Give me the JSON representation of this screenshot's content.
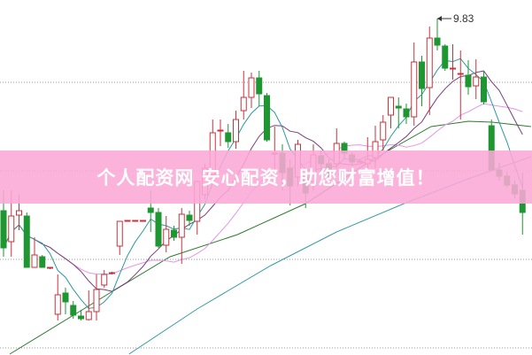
{
  "chart_data": {
    "type": "candlestick",
    "title": "",
    "xlabel": "",
    "ylabel": "",
    "ylim": [
      6.03,
      10.04
    ],
    "grid": "horizontal dotted",
    "grid_levels": [
      9.11,
      8.11,
      7.11,
      6.11
    ],
    "max_annotation": {
      "label": "9.83",
      "value": 9.83,
      "index": 56
    },
    "colors": {
      "up": "#c8323c",
      "down": "#1e9632",
      "ma5": "#2a9a9a",
      "ma10": "#7a3c7a",
      "ma20": "#e596e5",
      "ma60": "#2f7a2f",
      "ma120": "#3a9aa8",
      "grid": "#999999"
    },
    "candles_ohlc": [
      [
        7.66,
        7.89,
        7.14,
        7.24
      ],
      [
        7.31,
        7.89,
        7.14,
        7.6
      ],
      [
        7.61,
        7.84,
        7.44,
        7.66
      ],
      [
        7.6,
        7.64,
        7.02,
        7.02
      ],
      [
        7.02,
        7.36,
        7.02,
        7.16
      ],
      [
        7.14,
        7.16,
        7.02,
        7.02
      ],
      [
        7.01,
        7.02,
        7.0,
        7.02
      ],
      [
        6.49,
        6.94,
        6.42,
        6.71
      ],
      [
        6.73,
        6.79,
        6.49,
        6.63
      ],
      [
        6.59,
        6.64,
        6.44,
        6.48
      ],
      [
        6.47,
        6.54,
        6.42,
        6.44
      ],
      [
        6.43,
        6.76,
        6.42,
        6.52
      ],
      [
        6.52,
        6.94,
        6.42,
        6.77
      ],
      [
        6.82,
        6.99,
        6.79,
        6.94
      ],
      [
        6.95,
        6.97,
        6.94,
        6.96
      ],
      [
        7.26,
        7.54,
        7.16,
        7.54
      ],
      [
        7.55,
        7.55,
        7.54,
        7.55
      ],
      [
        7.55,
        7.55,
        7.54,
        7.55
      ],
      [
        7.55,
        7.55,
        7.54,
        7.55
      ],
      [
        7.69,
        7.89,
        7.42,
        7.64
      ],
      [
        7.64,
        7.69,
        7.24,
        7.26
      ],
      [
        7.27,
        7.6,
        7.19,
        7.45
      ],
      [
        7.44,
        7.49,
        7.32,
        7.36
      ],
      [
        7.36,
        7.69,
        7.06,
        7.62
      ],
      [
        7.61,
        7.66,
        7.49,
        7.55
      ],
      [
        7.54,
        8.0,
        7.39,
        7.99
      ],
      [
        7.84,
        8.19,
        7.79,
        8.14
      ],
      [
        8.07,
        8.69,
        8.04,
        8.54
      ],
      [
        8.56,
        8.69,
        8.39,
        8.57
      ],
      [
        8.54,
        8.64,
        8.37,
        8.44
      ],
      [
        8.44,
        8.79,
        8.36,
        8.69
      ],
      [
        8.79,
        9.24,
        8.69,
        8.94
      ],
      [
        8.94,
        9.22,
        8.82,
        9.16
      ],
      [
        9.16,
        9.24,
        8.84,
        8.98
      ],
      [
        8.96,
        8.99,
        8.44,
        8.46
      ],
      [
        8.3,
        8.61,
        8.04,
        8.31
      ],
      [
        8.31,
        8.41,
        7.89,
        8.09
      ],
      [
        8.14,
        8.24,
        7.72,
        7.94
      ],
      [
        8.04,
        8.46,
        7.94,
        8.41
      ],
      [
        8.04,
        8.09,
        7.69,
        7.86
      ],
      [
        7.99,
        8.41,
        7.89,
        8.29
      ],
      [
        8.28,
        8.34,
        8.09,
        8.19
      ],
      [
        8.19,
        8.24,
        7.94,
        8.04
      ],
      [
        8.19,
        8.59,
        8.14,
        8.42
      ],
      [
        8.42,
        8.44,
        8.24,
        8.31
      ],
      [
        8.29,
        8.32,
        8.18,
        8.21
      ],
      [
        8.21,
        8.24,
        8.2,
        8.22
      ],
      [
        8.19,
        8.49,
        8.14,
        8.24
      ],
      [
        8.26,
        8.62,
        8.14,
        8.44
      ],
      [
        8.46,
        8.74,
        8.34,
        8.66
      ],
      [
        8.74,
        8.94,
        8.59,
        8.94
      ],
      [
        8.84,
        8.94,
        8.59,
        8.82
      ],
      [
        8.81,
        8.87,
        8.64,
        8.72
      ],
      [
        8.72,
        9.56,
        8.62,
        9.34
      ],
      [
        9.34,
        9.41,
        8.84,
        9.04
      ],
      [
        9.05,
        9.74,
        8.74,
        9.61
      ],
      [
        9.61,
        9.83,
        9.47,
        9.53
      ],
      [
        9.52,
        9.54,
        9.24,
        9.27
      ],
      [
        9.26,
        9.54,
        9.14,
        9.27
      ],
      [
        9.2,
        9.47,
        8.69,
        9.21
      ],
      [
        9.19,
        9.36,
        8.97,
        9.06
      ],
      [
        9.07,
        9.37,
        8.92,
        9.17
      ],
      [
        9.17,
        9.24,
        8.86,
        8.89
      ],
      [
        8.62,
        8.69,
        8.12,
        8.12
      ],
      [
        8.12,
        8.2,
        8.0,
        8.05
      ],
      [
        8.05,
        8.1,
        7.92,
        7.95
      ],
      [
        7.95,
        8.0,
        7.8,
        7.85
      ],
      [
        7.89,
        8.09,
        7.39,
        7.64
      ]
    ],
    "ma60_points": [
      [
        0.8,
        6.04
      ],
      [
        13.9,
        6.74
      ],
      [
        21.5,
        7.14
      ],
      [
        30.2,
        7.39
      ],
      [
        39,
        7.74
      ],
      [
        47.7,
        8.24
      ],
      [
        55.2,
        8.61
      ],
      [
        60,
        8.67
      ],
      [
        63.1,
        8.66
      ],
      [
        68.1,
        8.61
      ]
    ],
    "ma120_points": [
      [
        16.2,
        6.04
      ],
      [
        25,
        6.55
      ],
      [
        34.5,
        7.04
      ],
      [
        43,
        7.42
      ],
      [
        51.7,
        7.74
      ],
      [
        60,
        8.02
      ],
      [
        68.1,
        8.27
      ]
    ]
  },
  "banner": {
    "text": "个人配资网 安心配资，助您财富增值！"
  }
}
